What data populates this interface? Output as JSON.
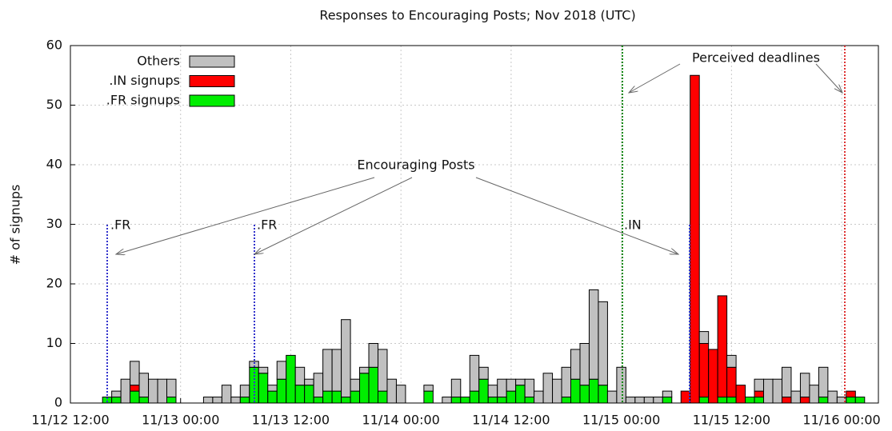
{
  "chart_data": {
    "type": "stacked-bar",
    "title": "Responses to Encouraging Posts; Nov 2018 (UTC)",
    "y_label": "# of signups",
    "x": [
      15.5,
      16.5,
      17.5,
      18.5,
      19.5,
      20.5,
      21.5,
      22.5,
      23.5,
      24.5,
      25.5,
      26.5,
      27.5,
      28.5,
      29.5,
      30.5,
      31.5,
      32.5,
      33.5,
      34.5,
      35.5,
      36.5,
      37.5,
      38.5,
      39.5,
      40.5,
      41.5,
      42.5,
      43.5,
      44.5,
      45.5,
      46.5,
      47.5,
      48.5,
      49.5,
      50.5,
      51.5,
      52.5,
      53.5,
      54.5,
      55.5,
      56.5,
      57.5,
      58.5,
      59.5,
      60.5,
      61.5,
      62.5,
      63.5,
      64.5,
      65.5,
      66.5,
      67.5,
      68.5,
      69.5,
      70.5,
      71.5,
      72.5,
      73.5,
      74.5,
      75.5,
      76.5,
      77.5,
      78.5,
      79.5,
      80.5,
      81.5,
      82.5,
      83.5,
      84.5,
      85.5,
      86.5,
      87.5,
      88.5,
      89.5,
      90.5,
      91.5,
      92.5,
      93.5,
      94.5,
      95.5,
      96.5,
      97.5,
      98.5
    ],
    "series": [
      {
        "name": "Others",
        "color": "#c0c0c0",
        "values": [
          0,
          1,
          4,
          4,
          4,
          4,
          4,
          3,
          0,
          0,
          0,
          1,
          1,
          3,
          1,
          2,
          1,
          1,
          1,
          3,
          0,
          3,
          1,
          4,
          7,
          7,
          13,
          2,
          1,
          4,
          7,
          4,
          3,
          0,
          0,
          1,
          0,
          1,
          3,
          0,
          6,
          2,
          2,
          3,
          2,
          1,
          3,
          2,
          5,
          4,
          5,
          5,
          7,
          15,
          14,
          2,
          6,
          1,
          1,
          1,
          1,
          1,
          0,
          0,
          0,
          2,
          0,
          0,
          2,
          0,
          0,
          2,
          4,
          4,
          5,
          2,
          4,
          3,
          5,
          2,
          1,
          0,
          0,
          0
        ]
      },
      {
        "name": ".IN signups",
        "color": "#ff0000",
        "values": [
          0,
          0,
          0,
          1,
          0,
          0,
          0,
          0,
          0,
          0,
          0,
          0,
          0,
          0,
          0,
          0,
          0,
          0,
          0,
          0,
          0,
          0,
          0,
          0,
          0,
          0,
          0,
          0,
          0,
          0,
          0,
          0,
          0,
          0,
          0,
          0,
          0,
          0,
          0,
          0,
          0,
          0,
          0,
          0,
          0,
          0,
          0,
          0,
          0,
          0,
          0,
          0,
          0,
          0,
          0,
          0,
          0,
          0,
          0,
          0,
          0,
          0,
          0,
          2,
          55,
          9,
          9,
          17,
          5,
          3,
          0,
          1,
          0,
          0,
          1,
          0,
          1,
          0,
          0,
          0,
          0,
          1,
          0,
          0
        ]
      },
      {
        "name": ".FR signups",
        "color": "#00ee00",
        "values": [
          1,
          1,
          0,
          2,
          1,
          0,
          0,
          1,
          0,
          0,
          0,
          0,
          0,
          0,
          0,
          1,
          6,
          5,
          2,
          4,
          8,
          3,
          3,
          1,
          2,
          2,
          1,
          2,
          5,
          6,
          2,
          0,
          0,
          0,
          0,
          2,
          0,
          0,
          1,
          1,
          2,
          4,
          1,
          1,
          2,
          3,
          1,
          0,
          0,
          0,
          1,
          4,
          3,
          4,
          3,
          0,
          0,
          0,
          0,
          0,
          0,
          1,
          0,
          0,
          0,
          1,
          0,
          1,
          1,
          0,
          1,
          1,
          0,
          0,
          0,
          0,
          0,
          0,
          1,
          0,
          0,
          1,
          1,
          0
        ]
      }
    ],
    "bin_width": 1,
    "xlim": [
      12,
      100
    ],
    "xticks": [
      {
        "value": 12,
        "label": "11/12 12:00"
      },
      {
        "value": 24,
        "label": "11/13 00:00"
      },
      {
        "value": 36,
        "label": "11/13 12:00"
      },
      {
        "value": 48,
        "label": "11/14 00:00"
      },
      {
        "value": 60,
        "label": "11/14 12:00"
      },
      {
        "value": 72,
        "label": "11/15 00:00"
      },
      {
        "value": 84,
        "label": "11/15 12:00"
      },
      {
        "value": 96,
        "label": "11/16 00:00"
      }
    ],
    "ylim": [
      0,
      60
    ],
    "yticks": [
      0,
      10,
      20,
      30,
      40,
      50,
      60
    ],
    "grid": true,
    "legend": "top-left",
    "annotations": [
      ".FR",
      ".FR",
      ".IN",
      "Encouraging Posts",
      "Perceived deadlines"
    ]
  }
}
